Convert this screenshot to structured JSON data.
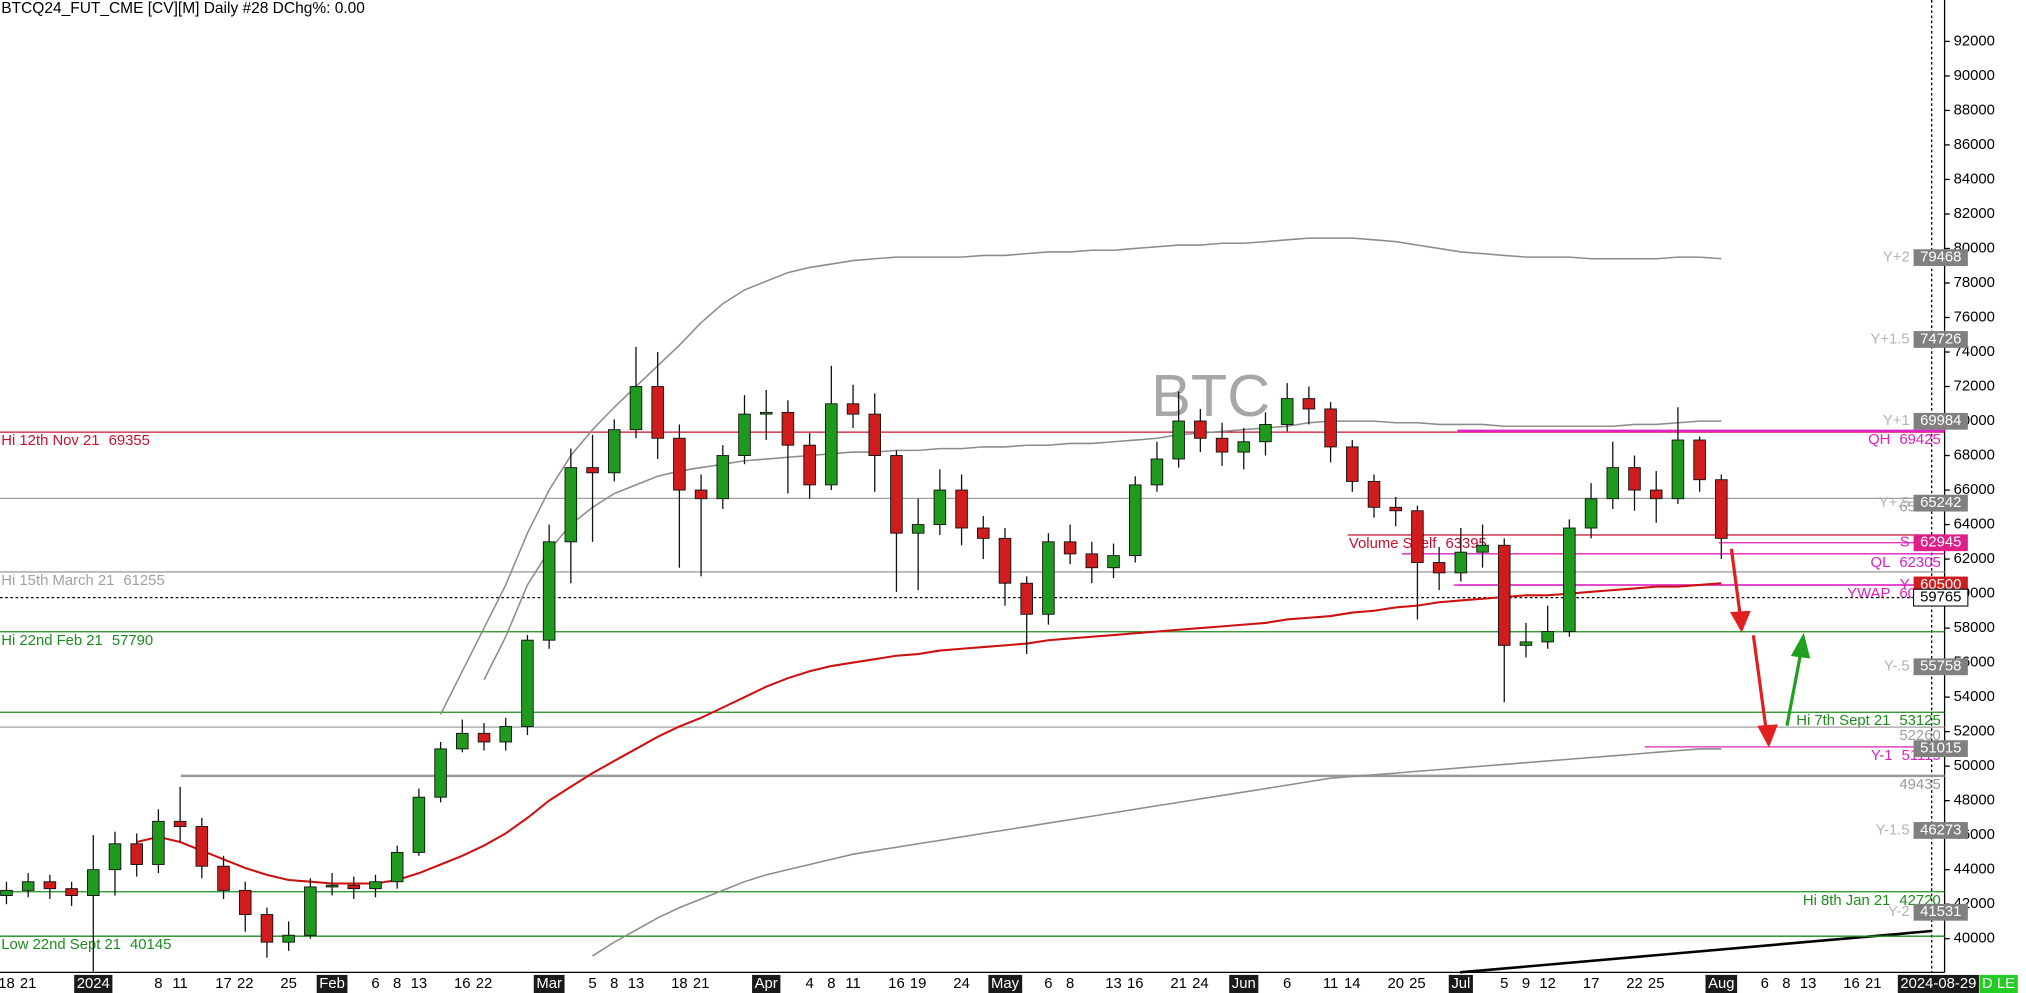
{
  "chart_data": {
    "type": "candlestick",
    "title": "BTCQ24_FUT_CME [CV][M]  Daily #28 DChg%: 0.00",
    "watermark": "BTC",
    "categories": [
      "18",
      "21",
      null,
      null,
      "2024",
      null,
      null,
      "8",
      "11",
      null,
      "17",
      "22",
      null,
      "25",
      null,
      "Feb",
      null,
      "6",
      "8",
      "13",
      null,
      "16",
      "22",
      null,
      null,
      "Mar",
      null,
      "5",
      "8",
      "13",
      null,
      "18",
      "21",
      null,
      null,
      "Apr",
      null,
      "4",
      "8",
      "11",
      null,
      "16",
      "19",
      null,
      "24",
      null,
      "May",
      null,
      "6",
      "8",
      null,
      "13",
      "16",
      null,
      "21",
      "24",
      null,
      "Jun",
      null,
      "6",
      null,
      "11",
      "14",
      null,
      "20",
      "25",
      null,
      "Jul",
      null,
      "5",
      "9",
      "12",
      null,
      "17",
      null,
      "22",
      "25",
      null,
      null,
      "Aug",
      null,
      "6",
      "8",
      "13",
      null,
      "16",
      "21",
      null,
      null,
      "2024-08-29"
    ],
    "open": [
      42500,
      42800,
      43300,
      42900,
      42500,
      44000,
      45500,
      44300,
      46800,
      46500,
      44200,
      42800,
      41400,
      39800,
      40200,
      43000,
      43100,
      42900,
      43300,
      45000,
      48200,
      51000,
      51900,
      51400,
      52300,
      57300,
      63000,
      67300,
      67000,
      69500,
      72000,
      69000,
      66000,
      65500,
      68000,
      70400,
      70500,
      68600,
      66300,
      71000,
      70400,
      68000,
      63500,
      64000,
      66000,
      63800,
      63200,
      60600,
      58800,
      63000,
      62300,
      61500,
      62200,
      66300,
      67800,
      70000,
      69000,
      68200,
      68800,
      69800,
      71300,
      70700,
      68500,
      66500,
      65000,
      64800,
      61800,
      61200,
      62400,
      62800,
      57000,
      57200,
      57800,
      63800,
      65500,
      67300,
      66000,
      65500,
      68900,
      66600,
      null,
      null,
      null,
      null,
      null,
      null,
      null,
      null,
      null,
      null
    ],
    "high": [
      43300,
      43800,
      43700,
      43300,
      46000,
      46200,
      46100,
      47500,
      48800,
      47000,
      44800,
      43300,
      41800,
      41000,
      43500,
      43800,
      43600,
      43700,
      45400,
      48700,
      51400,
      52700,
      52500,
      52800,
      57600,
      64000,
      68400,
      69200,
      70100,
      74300,
      74000,
      69800,
      66900,
      68600,
      71500,
      71800,
      71200,
      69300,
      73200,
      72100,
      71600,
      68300,
      65500,
      67200,
      66900,
      64500,
      63800,
      61000,
      63500,
      64000,
      63000,
      62900,
      66800,
      68800,
      71700,
      70700,
      69900,
      69600,
      70500,
      72200,
      72000,
      71100,
      68900,
      66900,
      65600,
      65100,
      62700,
      63800,
      64000,
      63200,
      58300,
      59300,
      64300,
      66400,
      68800,
      68000,
      67100,
      70800,
      69100,
      66900,
      null,
      null,
      null,
      null,
      null,
      null,
      null,
      null,
      null,
      null
    ],
    "low": [
      42000,
      42400,
      42300,
      41900,
      38100,
      42500,
      43600,
      43800,
      45600,
      43500,
      42300,
      40400,
      38900,
      39300,
      40000,
      42500,
      42300,
      42400,
      42900,
      44800,
      47900,
      50800,
      50900,
      50900,
      51800,
      56800,
      60600,
      63000,
      66500,
      69000,
      67800,
      61500,
      61000,
      64900,
      67500,
      68900,
      65800,
      65500,
      66000,
      69600,
      65900,
      60100,
      60200,
      63400,
      62800,
      62000,
      59300,
      56500,
      58200,
      61700,
      60600,
      60900,
      61800,
      65900,
      67300,
      68200,
      67400,
      67200,
      68000,
      69400,
      69800,
      67600,
      65900,
      64400,
      63900,
      58500,
      60200,
      60700,
      61500,
      53700,
      56300,
      56800,
      57500,
      63200,
      64900,
      64800,
      64100,
      65200,
      65900,
      62000,
      null,
      null,
      null,
      null,
      null,
      null,
      null,
      null,
      null,
      null
    ],
    "close": [
      42800,
      43300,
      42900,
      42500,
      44000,
      45500,
      44300,
      46800,
      46500,
      44200,
      42800,
      41400,
      39800,
      40200,
      43000,
      43100,
      42900,
      43300,
      45000,
      48200,
      51000,
      51900,
      51400,
      52300,
      57300,
      63000,
      67300,
      67000,
      69500,
      72000,
      69000,
      66000,
      65500,
      68000,
      70400,
      70500,
      68600,
      66300,
      71000,
      70400,
      68000,
      63500,
      64000,
      66000,
      63800,
      63200,
      60600,
      58800,
      63000,
      62300,
      61500,
      62200,
      66300,
      67800,
      70000,
      69000,
      68200,
      68800,
      69800,
      71300,
      70700,
      68500,
      66500,
      65000,
      64800,
      61800,
      61200,
      62400,
      62800,
      57000,
      57200,
      57800,
      63800,
      65500,
      67300,
      66000,
      65500,
      68900,
      66600,
      63200,
      null,
      null,
      null,
      null,
      null,
      null,
      null,
      null,
      null,
      null
    ],
    "up_color": "#1f9a1f",
    "down_color": "#d01c1c",
    "series": [
      {
        "color": "#8c8c8c",
        "values": [
          null,
          null,
          null,
          null,
          null,
          null,
          null,
          null,
          null,
          null,
          null,
          null,
          null,
          null,
          null,
          null,
          null,
          null,
          null,
          null,
          53000,
          55500,
          58000,
          60500,
          63500,
          66000,
          68000,
          69500,
          70800,
          72000,
          73200,
          74400,
          75700,
          76800,
          77600,
          78100,
          78600,
          78900,
          79100,
          79300,
          79400,
          79500,
          79500,
          79500,
          79500,
          79600,
          79600,
          79700,
          79800,
          79800,
          79900,
          79900,
          80000,
          80100,
          80200,
          80200,
          80300,
          80300,
          80400,
          80500,
          80600,
          80600,
          80600,
          80500,
          80400,
          80200,
          80000,
          79800,
          79700,
          79600,
          79500,
          79500,
          79500,
          79400,
          79400,
          79400,
          79400,
          79500,
          79500,
          79400,
          null,
          null,
          null,
          null,
          null,
          null,
          null,
          null,
          null,
          null
        ]
      },
      {
        "color": "#8c8c8c",
        "values": [
          null,
          null,
          null,
          null,
          null,
          null,
          null,
          null,
          null,
          null,
          null,
          null,
          null,
          null,
          null,
          null,
          null,
          null,
          null,
          null,
          null,
          null,
          55000,
          57500,
          60500,
          62500,
          64000,
          65000,
          65800,
          66300,
          66800,
          67100,
          67300,
          67500,
          67700,
          67800,
          67900,
          68000,
          68100,
          68200,
          68200,
          68300,
          68300,
          68400,
          68400,
          68500,
          68500,
          68600,
          68600,
          68700,
          68700,
          68800,
          68900,
          69000,
          69200,
          69300,
          69400,
          69500,
          69600,
          69700,
          69900,
          70000,
          70000,
          70000,
          69900,
          69900,
          69800,
          69800,
          69800,
          69700,
          69700,
          69700,
          69700,
          69700,
          69700,
          69800,
          69800,
          69900,
          70000,
          70000,
          null,
          null,
          null,
          null,
          null,
          null,
          null,
          null,
          null,
          null
        ]
      },
      {
        "color": "#cc1111",
        "values": [
          null,
          null,
          null,
          null,
          null,
          null,
          45600,
          45900,
          45600,
          45100,
          44600,
          44100,
          43700,
          43400,
          43300,
          43200,
          43200,
          43200,
          43400,
          43800,
          44300,
          44800,
          45400,
          46100,
          47000,
          48000,
          48800,
          49600,
          50300,
          51000,
          51700,
          52300,
          52800,
          53400,
          54000,
          54600,
          55100,
          55500,
          55800,
          56000,
          56200,
          56400,
          56500,
          56700,
          56800,
          56900,
          57000,
          57100,
          57300,
          57400,
          57500,
          57600,
          57700,
          57800,
          57900,
          58000,
          58100,
          58200,
          58300,
          58500,
          58600,
          58700,
          58900,
          59000,
          59200,
          59300,
          59500,
          59600,
          59700,
          59800,
          59900,
          59900,
          60000,
          60100,
          60200,
          60300,
          60400,
          60400,
          60500,
          60600,
          null,
          null,
          null,
          null,
          null,
          null,
          null,
          null,
          null,
          null
        ]
      },
      {
        "color": "#8c8c8c",
        "values": [
          null,
          null,
          null,
          null,
          null,
          null,
          null,
          null,
          null,
          null,
          null,
          null,
          null,
          null,
          null,
          null,
          null,
          null,
          null,
          null,
          null,
          null,
          null,
          null,
          null,
          null,
          null,
          39000,
          39800,
          40500,
          41200,
          41800,
          42300,
          42800,
          43300,
          43700,
          44000,
          44300,
          44600,
          44900,
          45100,
          45300,
          45500,
          45700,
          45900,
          46100,
          46300,
          46500,
          46700,
          46900,
          47100,
          47300,
          47500,
          47700,
          47900,
          48100,
          48300,
          48500,
          48700,
          48900,
          49100,
          49300,
          49400,
          49500,
          49600,
          49700,
          49800,
          49900,
          50000,
          50100,
          50200,
          50300,
          50400,
          50500,
          50600,
          50700,
          50800,
          50900,
          51000,
          51000,
          null,
          null,
          null,
          null,
          null,
          null,
          null,
          null,
          null,
          null
        ]
      }
    ],
    "levels": [
      {
        "label": "Hi 12th Nov 21",
        "value": 69355,
        "color": "#c8102e",
        "side": "left"
      },
      {
        "value": 65520,
        "color": "#a0a0a0",
        "side": "right"
      },
      {
        "label": "Hi 15th March 21",
        "value": 61255,
        "color": "#a0a0a0",
        "side": "left"
      },
      {
        "label": "Hi 22nd Feb 21",
        "value": 57790,
        "color": "#1e8c1e",
        "side": "left"
      },
      {
        "label": "Hi 7th Sept 21",
        "value": 53125,
        "color": "#1e8c1e",
        "side": "right"
      },
      {
        "value": 52260,
        "color": "#a0a0a0",
        "side": "right"
      },
      {
        "value": 49435,
        "color": "#999999",
        "side": "right",
        "thick": true
      },
      {
        "label": "Hi 8th Jan 21",
        "value": 42720,
        "color": "#1e8c1e",
        "side": "right"
      },
      {
        "label": "Low 22nd Sept 21",
        "value": 40145,
        "color": "#1e8c1e",
        "side": "left"
      },
      {
        "label": "QH",
        "value": 69425,
        "color": "#e020c0",
        "side": "right",
        "thick": true
      },
      {
        "label": "Volume Shelf",
        "value": 63395,
        "color": "#c8102e",
        "side": "left"
      },
      {
        "label": "QL",
        "value": 62305,
        "color": "#e020c0",
        "side": "right"
      },
      {
        "label": "YWAP",
        "value": 60495,
        "color": "#e020c0",
        "side": "right"
      },
      {
        "label": "Y-1",
        "value": 51115,
        "color": "#e020c0",
        "side": "right"
      }
    ],
    "tags": [
      {
        "prefix": "Y+2",
        "value": 79468,
        "bg": "#808080",
        "fg": "#ffffff"
      },
      {
        "prefix": "Y+1.5",
        "value": 74726,
        "bg": "#808080",
        "fg": "#ffffff"
      },
      {
        "prefix": "Y+1",
        "value": 69984,
        "bg": "#808080",
        "fg": "#ffffff"
      },
      {
        "prefix": "Y+.5",
        "value": 65242,
        "bg": "#808080",
        "fg": "#ffffff"
      },
      {
        "prefix": "S",
        "value": 62945,
        "bg": "#e0208a",
        "fg": "#ffffff",
        "line": "#e020c0"
      },
      {
        "prefix": "Y",
        "value": 60500,
        "bg": "#d01c1c",
        "fg": "#ffffff",
        "line": "#e020c0"
      },
      {
        "value": 59765,
        "bg": "#ffffff",
        "fg": "#000000",
        "line": "#000000",
        "dash": true
      },
      {
        "prefix": "Y-.5",
        "value": 55758,
        "bg": "#808080",
        "fg": "#ffffff"
      },
      {
        "value": 51015,
        "bg": "#808080",
        "fg": "#ffffff"
      },
      {
        "prefix": "Y-1.5",
        "value": 46273,
        "bg": "#808080",
        "fg": "#ffffff"
      },
      {
        "prefix": "Y-2",
        "value": 41531,
        "bg": "#808080",
        "fg": "#ffffff"
      }
    ],
    "status_tag": "D LE",
    "ylim": [
      38050,
      94400
    ],
    "yticks": [
      40000,
      42000,
      44000,
      46000,
      48000,
      50000,
      52000,
      54000,
      56000,
      58000,
      60000,
      62000,
      64000,
      66000,
      68000,
      70000,
      72000,
      74000,
      76000,
      78000,
      80000,
      82000,
      84000,
      86000,
      88000,
      90000,
      92000
    ]
  }
}
